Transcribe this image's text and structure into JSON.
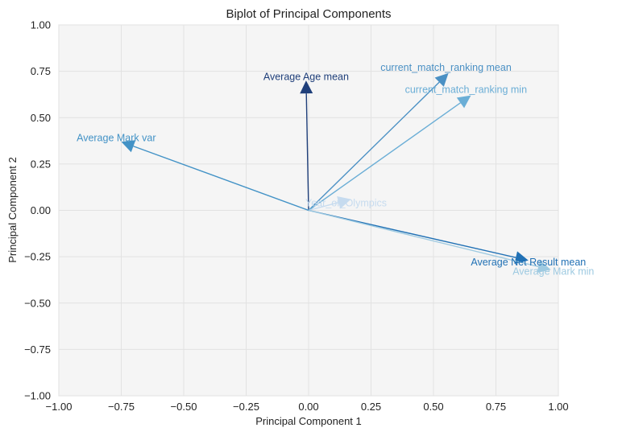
{
  "chart_data": {
    "type": "scatter",
    "subtype": "biplot-vectors",
    "title": "Biplot of Principal Components",
    "xlabel": "Principal Component 1",
    "ylabel": "Principal Component 2",
    "xlim": [
      -1.0,
      1.0
    ],
    "ylim": [
      -1.0,
      1.0
    ],
    "xticks": [
      -1.0,
      -0.75,
      -0.5,
      -0.25,
      0.0,
      0.25,
      0.5,
      0.75,
      1.0
    ],
    "yticks": [
      -1.0,
      -0.75,
      -0.5,
      -0.25,
      0.0,
      0.25,
      0.5,
      0.75,
      1.0
    ],
    "xtick_labels": [
      "−1.00",
      "−0.75",
      "−0.50",
      "−0.25",
      "0.00",
      "0.25",
      "0.50",
      "0.75",
      "1.00"
    ],
    "ytick_labels": [
      "−1.00",
      "−0.75",
      "−0.50",
      "−0.25",
      "0.00",
      "0.25",
      "0.50",
      "0.75",
      "1.00"
    ],
    "grid": true,
    "origin": [
      0,
      0
    ],
    "vectors": [
      {
        "name": "Average Age mean",
        "x": -0.01,
        "y": 0.7,
        "label_x": -0.01,
        "label_y": 0.72,
        "color": "#1f3f7a"
      },
      {
        "name": "current_match_ranking mean",
        "x": 0.56,
        "y": 0.74,
        "label_x": 0.55,
        "label_y": 0.77,
        "color": "#4a90c4"
      },
      {
        "name": "current_match_ranking min",
        "x": 0.65,
        "y": 0.62,
        "label_x": 0.63,
        "label_y": 0.65,
        "color": "#6baed6"
      },
      {
        "name": "Average Mark var",
        "x": -0.75,
        "y": 0.37,
        "label_x": -0.77,
        "label_y": 0.39,
        "color": "#4292c6"
      },
      {
        "name": "Year_of_Olympics",
        "x": 0.17,
        "y": 0.06,
        "label_x": 0.15,
        "label_y": 0.04,
        "color": "#c6dbef"
      },
      {
        "name": "Average Net Result mean",
        "x": 0.88,
        "y": -0.27,
        "label_x": 0.88,
        "label_y": -0.28,
        "color": "#2171b5"
      },
      {
        "name": "Average Mark min",
        "x": 0.97,
        "y": -0.32,
        "label_x": 0.98,
        "label_y": -0.33,
        "color": "#9ecae1"
      }
    ]
  }
}
